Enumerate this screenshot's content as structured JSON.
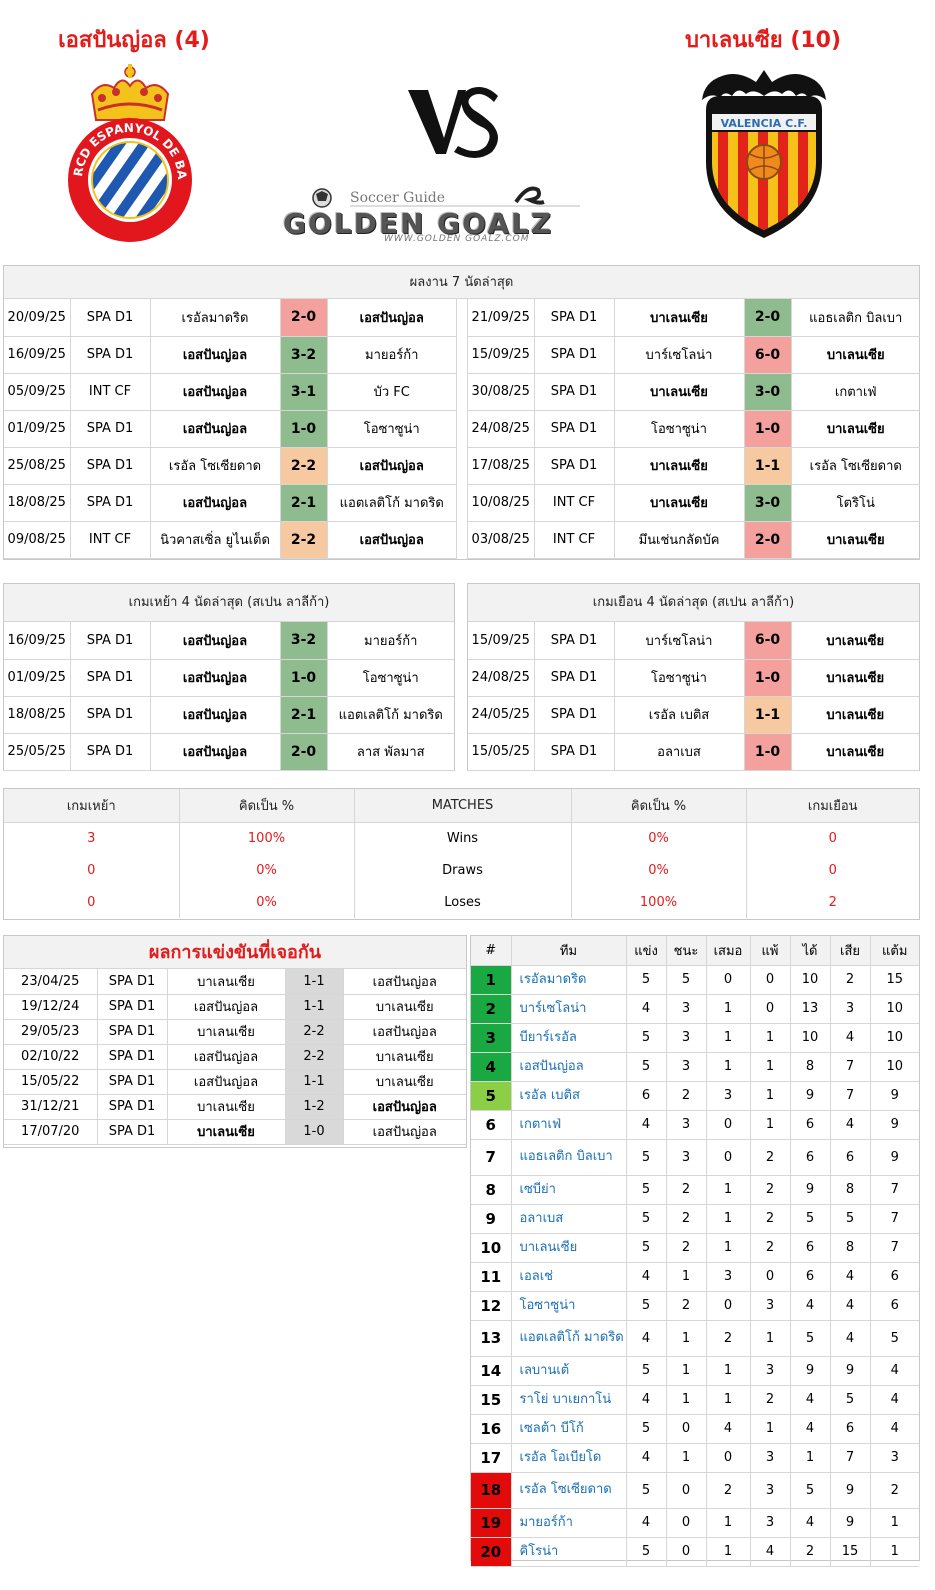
{
  "header": {
    "home_name": "เอสปันญ่อล (4)",
    "away_name": "บาเลนเซีย (10)",
    "home_crest_text": "RCD ESPANYOL DE BARCELONA",
    "away_crest_text": "VALENCIA C.F.",
    "logo_small": "Soccer Guide",
    "logo_big": "GOLDEN GOALZ",
    "logo_url": "WWW.GOLDEN GOALZ.COM",
    "colors": {
      "accent_red": "#e41b1b",
      "win": "#8fbc8f",
      "loss": "#f4a09c",
      "draw": "#f6c9a0"
    }
  },
  "last7": {
    "title": "ผลงาน 7 นัดล่าสุด",
    "home": [
      {
        "date": "20/09/25",
        "comp": "SPA D1",
        "home": "เรอัลมาดริด",
        "score": "2-0",
        "away": "เอสปันญ่อล",
        "res": "loss",
        "bold": "away"
      },
      {
        "date": "16/09/25",
        "comp": "SPA D1",
        "home": "เอสปันญ่อล",
        "score": "3-2",
        "away": "มายอร์ก้า",
        "res": "win",
        "bold": "home"
      },
      {
        "date": "05/09/25",
        "comp": "INT CF",
        "home": "เอสปันญ่อล",
        "score": "3-1",
        "away": "บัว FC",
        "res": "win",
        "bold": "home"
      },
      {
        "date": "01/09/25",
        "comp": "SPA D1",
        "home": "เอสปันญ่อล",
        "score": "1-0",
        "away": "โอซาซูน่า",
        "res": "win",
        "bold": "home"
      },
      {
        "date": "25/08/25",
        "comp": "SPA D1",
        "home": "เรอัล โซเซียดาด",
        "score": "2-2",
        "away": "เอสปันญ่อล",
        "res": "draw",
        "bold": "away"
      },
      {
        "date": "18/08/25",
        "comp": "SPA D1",
        "home": "เอสปันญ่อล",
        "score": "2-1",
        "away": "แอตเลติโก้ มาดริด",
        "res": "win",
        "bold": "home"
      },
      {
        "date": "09/08/25",
        "comp": "INT CF",
        "home": "นิวคาสเซิ่ล ยูไนเต็ด",
        "score": "2-2",
        "away": "เอสปันญ่อล",
        "res": "draw",
        "bold": "away"
      }
    ],
    "away": [
      {
        "date": "21/09/25",
        "comp": "SPA D1",
        "home": "บาเลนเซีย",
        "score": "2-0",
        "away": "แอธเลติก บิลเบา",
        "res": "win",
        "bold": "home"
      },
      {
        "date": "15/09/25",
        "comp": "SPA D1",
        "home": "บาร์เซโลน่า",
        "score": "6-0",
        "away": "บาเลนเซีย",
        "res": "loss",
        "bold": "away"
      },
      {
        "date": "30/08/25",
        "comp": "SPA D1",
        "home": "บาเลนเซีย",
        "score": "3-0",
        "away": "เกตาเฟ่",
        "res": "win",
        "bold": "home"
      },
      {
        "date": "24/08/25",
        "comp": "SPA D1",
        "home": "โอซาซูน่า",
        "score": "1-0",
        "away": "บาเลนเซีย",
        "res": "loss",
        "bold": "away"
      },
      {
        "date": "17/08/25",
        "comp": "SPA D1",
        "home": "บาเลนเซีย",
        "score": "1-1",
        "away": "เรอัล โซเซียดาด",
        "res": "draw",
        "bold": "home"
      },
      {
        "date": "10/08/25",
        "comp": "INT CF",
        "home": "บาเลนเซีย",
        "score": "3-0",
        "away": "โตริโน่",
        "res": "win",
        "bold": "home"
      },
      {
        "date": "03/08/25",
        "comp": "INT CF",
        "home": "มึนเช่นกลัดบัค",
        "score": "2-0",
        "away": "บาเลนเซีย",
        "res": "loss",
        "bold": "away"
      }
    ]
  },
  "last4": {
    "home_title": "เกมเหย้า 4 นัดล่าสุด (สเปน ลาลีก้า)",
    "away_title": "เกมเยือน 4 นัดล่าสุด (สเปน ลาลีก้า)",
    "home": [
      {
        "date": "16/09/25",
        "comp": "SPA D1",
        "home": "เอสปันญ่อล",
        "score": "3-2",
        "away": "มายอร์ก้า",
        "res": "win",
        "bold": "home"
      },
      {
        "date": "01/09/25",
        "comp": "SPA D1",
        "home": "เอสปันญ่อล",
        "score": "1-0",
        "away": "โอซาซูน่า",
        "res": "win",
        "bold": "home"
      },
      {
        "date": "18/08/25",
        "comp": "SPA D1",
        "home": "เอสปันญ่อล",
        "score": "2-1",
        "away": "แอตเลติโก้ มาดริด",
        "res": "win",
        "bold": "home"
      },
      {
        "date": "25/05/25",
        "comp": "SPA D1",
        "home": "เอสปันญ่อล",
        "score": "2-0",
        "away": "ลาส พัลมาส",
        "res": "win",
        "bold": "home"
      }
    ],
    "away": [
      {
        "date": "15/09/25",
        "comp": "SPA D1",
        "home": "บาร์เซโลน่า",
        "score": "6-0",
        "away": "บาเลนเซีย",
        "res": "loss",
        "bold": "away"
      },
      {
        "date": "24/08/25",
        "comp": "SPA D1",
        "home": "โอซาซูน่า",
        "score": "1-0",
        "away": "บาเลนเซีย",
        "res": "loss",
        "bold": "away"
      },
      {
        "date": "24/05/25",
        "comp": "SPA D1",
        "home": "เรอัล เบติส",
        "score": "1-1",
        "away": "บาเลนเซีย",
        "res": "draw",
        "bold": "away"
      },
      {
        "date": "15/05/25",
        "comp": "SPA D1",
        "home": "อลาเบส",
        "score": "1-0",
        "away": "บาเลนเซีย",
        "res": "loss",
        "bold": "away"
      }
    ]
  },
  "stats": {
    "headers": [
      "เกมเหย้า",
      "คิดเป็น %",
      "MATCHES",
      "คิดเป็น %",
      "เกมเยือน"
    ],
    "rows": [
      {
        "h": "3",
        "hp": "100%",
        "label": "Wins",
        "ap": "0%",
        "a": "0"
      },
      {
        "h": "0",
        "hp": "0%",
        "label": "Draws",
        "ap": "0%",
        "a": "0"
      },
      {
        "h": "0",
        "hp": "0%",
        "label": "Loses",
        "ap": "100%",
        "a": "2"
      }
    ]
  },
  "h2h": {
    "title": "ผลการแข่งขันที่เจอกัน",
    "rows": [
      {
        "date": "23/04/25",
        "comp": "SPA D1",
        "home": "บาเลนเซีย",
        "score": "1-1",
        "away": "เอสปันญ่อล",
        "bold": ""
      },
      {
        "date": "19/12/24",
        "comp": "SPA D1",
        "home": "เอสปันญ่อล",
        "score": "1-1",
        "away": "บาเลนเซีย",
        "bold": ""
      },
      {
        "date": "29/05/23",
        "comp": "SPA D1",
        "home": "บาเลนเซีย",
        "score": "2-2",
        "away": "เอสปันญ่อล",
        "bold": ""
      },
      {
        "date": "02/10/22",
        "comp": "SPA D1",
        "home": "เอสปันญ่อล",
        "score": "2-2",
        "away": "บาเลนเซีย",
        "bold": ""
      },
      {
        "date": "15/05/22",
        "comp": "SPA D1",
        "home": "เอสปันญ่อล",
        "score": "1-1",
        "away": "บาเลนเซีย",
        "bold": ""
      },
      {
        "date": "31/12/21",
        "comp": "SPA D1",
        "home": "บาเลนเซีย",
        "score": "1-2",
        "away": "เอสปันญ่อล",
        "bold": "away"
      },
      {
        "date": "17/07/20",
        "comp": "SPA D1",
        "home": "บาเลนเซีย",
        "score": "1-0",
        "away": "เอสปันญ่อล",
        "bold": "home"
      }
    ]
  },
  "league": {
    "headers": [
      "#",
      "ทีม",
      "แข่ง",
      "ชนะ",
      "เสมอ",
      "แพ้",
      "ได้",
      "เสีย",
      "แต้ม"
    ],
    "rows": [
      {
        "pos": "1",
        "team": "เรอัลมาดริด",
        "p": "5",
        "w": "5",
        "d": "0",
        "l": "0",
        "gf": "10",
        "ga": "2",
        "pts": "15",
        "zone": "cl"
      },
      {
        "pos": "2",
        "team": "บาร์เซโลน่า",
        "p": "4",
        "w": "3",
        "d": "1",
        "l": "0",
        "gf": "13",
        "ga": "3",
        "pts": "10",
        "zone": "cl"
      },
      {
        "pos": "3",
        "team": "บียาร์เรอัล",
        "p": "5",
        "w": "3",
        "d": "1",
        "l": "1",
        "gf": "10",
        "ga": "4",
        "pts": "10",
        "zone": "cl"
      },
      {
        "pos": "4",
        "team": "เอสปันญ่อล",
        "p": "5",
        "w": "3",
        "d": "1",
        "l": "1",
        "gf": "8",
        "ga": "7",
        "pts": "10",
        "zone": "cl"
      },
      {
        "pos": "5",
        "team": "เรอัล เบติส",
        "p": "6",
        "w": "2",
        "d": "3",
        "l": "1",
        "gf": "9",
        "ga": "7",
        "pts": "9",
        "zone": "el"
      },
      {
        "pos": "6",
        "team": "เกตาเฟ่",
        "p": "4",
        "w": "3",
        "d": "0",
        "l": "1",
        "gf": "6",
        "ga": "4",
        "pts": "9",
        "zone": ""
      },
      {
        "pos": "7",
        "team": "แอธเลติก บิลเบา",
        "p": "5",
        "w": "3",
        "d": "0",
        "l": "2",
        "gf": "6",
        "ga": "6",
        "pts": "9",
        "zone": ""
      },
      {
        "pos": "8",
        "team": "เซบีย่า",
        "p": "5",
        "w": "2",
        "d": "1",
        "l": "2",
        "gf": "9",
        "ga": "8",
        "pts": "7",
        "zone": ""
      },
      {
        "pos": "9",
        "team": "อลาเบส",
        "p": "5",
        "w": "2",
        "d": "1",
        "l": "2",
        "gf": "5",
        "ga": "5",
        "pts": "7",
        "zone": ""
      },
      {
        "pos": "10",
        "team": "บาเลนเซีย",
        "p": "5",
        "w": "2",
        "d": "1",
        "l": "2",
        "gf": "6",
        "ga": "8",
        "pts": "7",
        "zone": ""
      },
      {
        "pos": "11",
        "team": "เอลเช่",
        "p": "4",
        "w": "1",
        "d": "3",
        "l": "0",
        "gf": "6",
        "ga": "4",
        "pts": "6",
        "zone": ""
      },
      {
        "pos": "12",
        "team": "โอซาซูน่า",
        "p": "5",
        "w": "2",
        "d": "0",
        "l": "3",
        "gf": "4",
        "ga": "4",
        "pts": "6",
        "zone": ""
      },
      {
        "pos": "13",
        "team": "แอตเลติโก้ มาดริด",
        "p": "4",
        "w": "1",
        "d": "2",
        "l": "1",
        "gf": "5",
        "ga": "4",
        "pts": "5",
        "zone": ""
      },
      {
        "pos": "14",
        "team": "เลบานเต้",
        "p": "5",
        "w": "1",
        "d": "1",
        "l": "3",
        "gf": "9",
        "ga": "9",
        "pts": "4",
        "zone": ""
      },
      {
        "pos": "15",
        "team": "ราโย่ บาเยกาโน่",
        "p": "4",
        "w": "1",
        "d": "1",
        "l": "2",
        "gf": "4",
        "ga": "5",
        "pts": "4",
        "zone": ""
      },
      {
        "pos": "16",
        "team": "เซลต้า บีโก้",
        "p": "5",
        "w": "0",
        "d": "4",
        "l": "1",
        "gf": "4",
        "ga": "6",
        "pts": "4",
        "zone": ""
      },
      {
        "pos": "17",
        "team": "เรอัล โอเบียโด",
        "p": "4",
        "w": "1",
        "d": "0",
        "l": "3",
        "gf": "1",
        "ga": "7",
        "pts": "3",
        "zone": ""
      },
      {
        "pos": "18",
        "team": "เรอัล โซเซียดาด",
        "p": "5",
        "w": "0",
        "d": "2",
        "l": "3",
        "gf": "5",
        "ga": "9",
        "pts": "2",
        "zone": "rel"
      },
      {
        "pos": "19",
        "team": "มายอร์ก้า",
        "p": "4",
        "w": "0",
        "d": "1",
        "l": "3",
        "gf": "4",
        "ga": "9",
        "pts": "1",
        "zone": "rel"
      },
      {
        "pos": "20",
        "team": "คิโรน่า",
        "p": "5",
        "w": "0",
        "d": "1",
        "l": "4",
        "gf": "2",
        "ga": "15",
        "pts": "1",
        "zone": "rel"
      }
    ]
  }
}
